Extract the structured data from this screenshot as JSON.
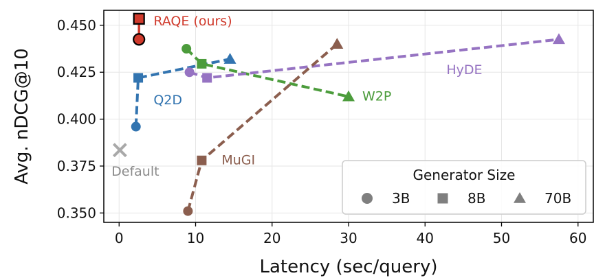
{
  "chart_data": {
    "type": "line",
    "xlabel": "Latency (sec/query)",
    "ylabel": "Avg. nDCG@10",
    "xlim": [
      -2,
      62
    ],
    "ylim": [
      0.345,
      0.458
    ],
    "x_ticks": [
      0,
      10,
      20,
      30,
      40,
      50,
      60
    ],
    "y_ticks": [
      0.35,
      0.375,
      0.4,
      0.425,
      0.45
    ],
    "x_tick_labels": [
      "0",
      "10",
      "20",
      "30",
      "40",
      "50",
      "60"
    ],
    "y_tick_labels": [
      "0.350",
      "0.375",
      "0.400",
      "0.425",
      "0.450"
    ],
    "grid": true,
    "series": [
      {
        "name": "Q2D",
        "label_x": 4.5,
        "label_y": 0.4105,
        "color": "#3274b0",
        "dashed": true,
        "points": [
          {
            "x": 2.2,
            "y": 0.396,
            "size": "3B",
            "marker": "circle"
          },
          {
            "x": 2.5,
            "y": 0.422,
            "size": "8B",
            "marker": "square"
          },
          {
            "x": 14.5,
            "y": 0.432,
            "size": "70B",
            "marker": "triangle"
          }
        ]
      },
      {
        "name": "W2P",
        "label_x": 31.8,
        "label_y": 0.4125,
        "color": "#4c9c3c",
        "dashed": true,
        "points": [
          {
            "x": 8.8,
            "y": 0.4375,
            "size": "3B",
            "marker": "circle"
          },
          {
            "x": 10.8,
            "y": 0.4295,
            "size": "8B",
            "marker": "square"
          },
          {
            "x": 30.0,
            "y": 0.412,
            "size": "70B",
            "marker": "triangle"
          }
        ]
      },
      {
        "name": "HyDE",
        "label_x": 42.8,
        "label_y": 0.4265,
        "color": "#9673c2",
        "dashed": true,
        "points": [
          {
            "x": 9.2,
            "y": 0.425,
            "size": "3B",
            "marker": "circle"
          },
          {
            "x": 11.5,
            "y": 0.422,
            "size": "8B",
            "marker": "square"
          },
          {
            "x": 57.5,
            "y": 0.4425,
            "size": "70B",
            "marker": "triangle"
          }
        ]
      },
      {
        "name": "MuGI",
        "label_x": 13.4,
        "label_y": 0.3785,
        "color": "#8b5e4e",
        "dashed": true,
        "points": [
          {
            "x": 9.0,
            "y": 0.351,
            "size": "3B",
            "marker": "circle"
          },
          {
            "x": 10.8,
            "y": 0.378,
            "size": "8B",
            "marker": "square"
          },
          {
            "x": 28.5,
            "y": 0.44,
            "size": "70B",
            "marker": "triangle"
          }
        ]
      },
      {
        "name": "RAQE (ours)",
        "label_x": 4.5,
        "label_y": 0.4525,
        "color": "#d03a2c",
        "dashed": false,
        "points": [
          {
            "x": 2.6,
            "y": 0.4425,
            "size": "3B",
            "marker": "circle"
          },
          {
            "x": 2.6,
            "y": 0.4535,
            "size": "8B",
            "marker": "square"
          }
        ]
      }
    ],
    "default": {
      "name": "Default",
      "x": 0.1,
      "y": 0.3835,
      "label_x": -1.0,
      "label_y": 0.3725,
      "color": "#a9a9a9",
      "marker": "x"
    },
    "legend": {
      "title": "Generator Size",
      "placement": "lower-right",
      "items": [
        {
          "label": "3B",
          "marker": "circle"
        },
        {
          "label": "8B",
          "marker": "square"
        },
        {
          "label": "70B",
          "marker": "triangle"
        }
      ],
      "marker_color": "#7f7f7f"
    }
  }
}
